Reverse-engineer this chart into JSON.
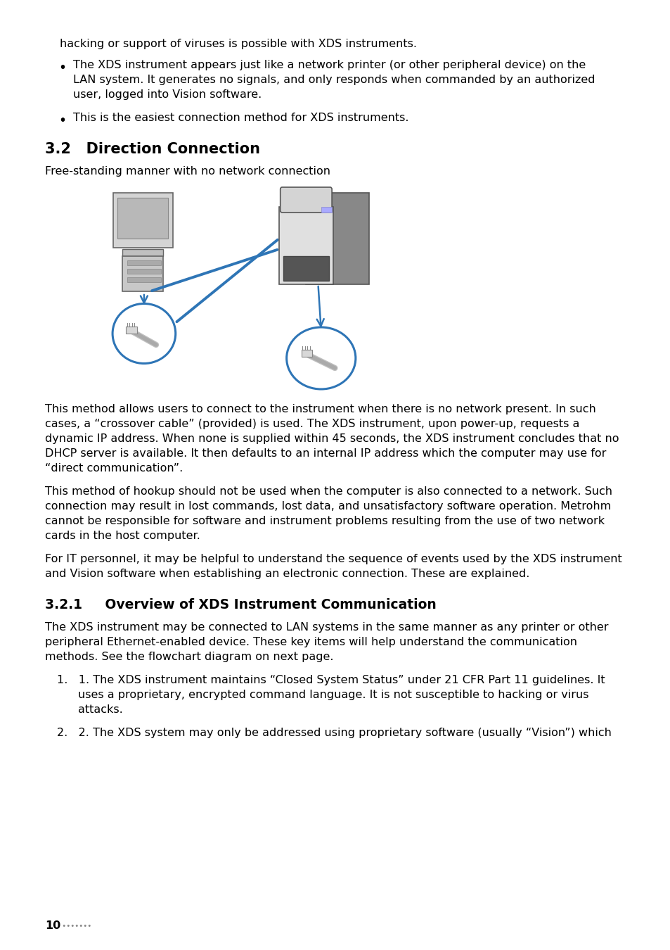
{
  "background_color": "#ffffff",
  "text_color": "#000000",
  "line_color": "#2e75b6",
  "page_number": "10",
  "page_number_dots": " •••••••",
  "intro_line": "hacking or support of viruses is possible with XDS instruments.",
  "bullet1_line1": "The XDS instrument appears just like a network printer (or other peripheral device) on the",
  "bullet1_line2": "LAN system. It generates no signals, and only responds when commanded by an authorized",
  "bullet1_line3": "user, logged into Vision software.",
  "bullet2_line1": "This is the easiest connection method for XDS instruments.",
  "section_heading": "3.2   Direction Connection",
  "section_subtext": "Free-standing manner with no network connection",
  "section2_heading": "3.2.1     Overview of XDS Instrument Communication",
  "para1_line1": "This method allows users to connect to the instrument when there is no network present. In such",
  "para1_line2": "cases, a “crossover cable” (provided) is used. The XDS instrument, upon power-up, requests a",
  "para1_line3": "dynamic IP address. When none is supplied within 45 seconds, the XDS instrument concludes that no",
  "para1_line4": "DHCP server is available. It then defaults to an internal IP address which the computer may use for",
  "para1_line5": "“direct communication”.",
  "para2_line1": "This method of hookup should not be used when the computer is also connected to a network. Such",
  "para2_line2": "connection may result in lost commands, lost data, and unsatisfactory software operation. Metrohm",
  "para2_line3": "cannot be responsible for software and instrument problems resulting from the use of two network",
  "para2_line4": "cards in the host computer.",
  "para3_line1": "For IT personnel, it may be helpful to understand the sequence of events used by the XDS instrument",
  "para3_line2": "and Vision software when establishing an electronic connection. These are explained.",
  "para4_line1": "The XDS instrument may be connected to LAN systems in the same manner as any printer or other",
  "para4_line2": "peripheral Ethernet-enabled device. These key items will help understand the communication",
  "para4_line3": "methods. See the flowchart diagram on next page.",
  "list_item1_line1": "1.   1. The XDS instrument maintains “Closed System Status” under 21 CFR Part 11 guidelines. It",
  "list_item1_line2": "uses a proprietary, encrypted command language. It is not susceptible to hacking or virus",
  "list_item1_line3": "attacks.",
  "list_item2_line1": "2.   2. The XDS system may only be addressed using proprietary software (usually “Vision”) which"
}
